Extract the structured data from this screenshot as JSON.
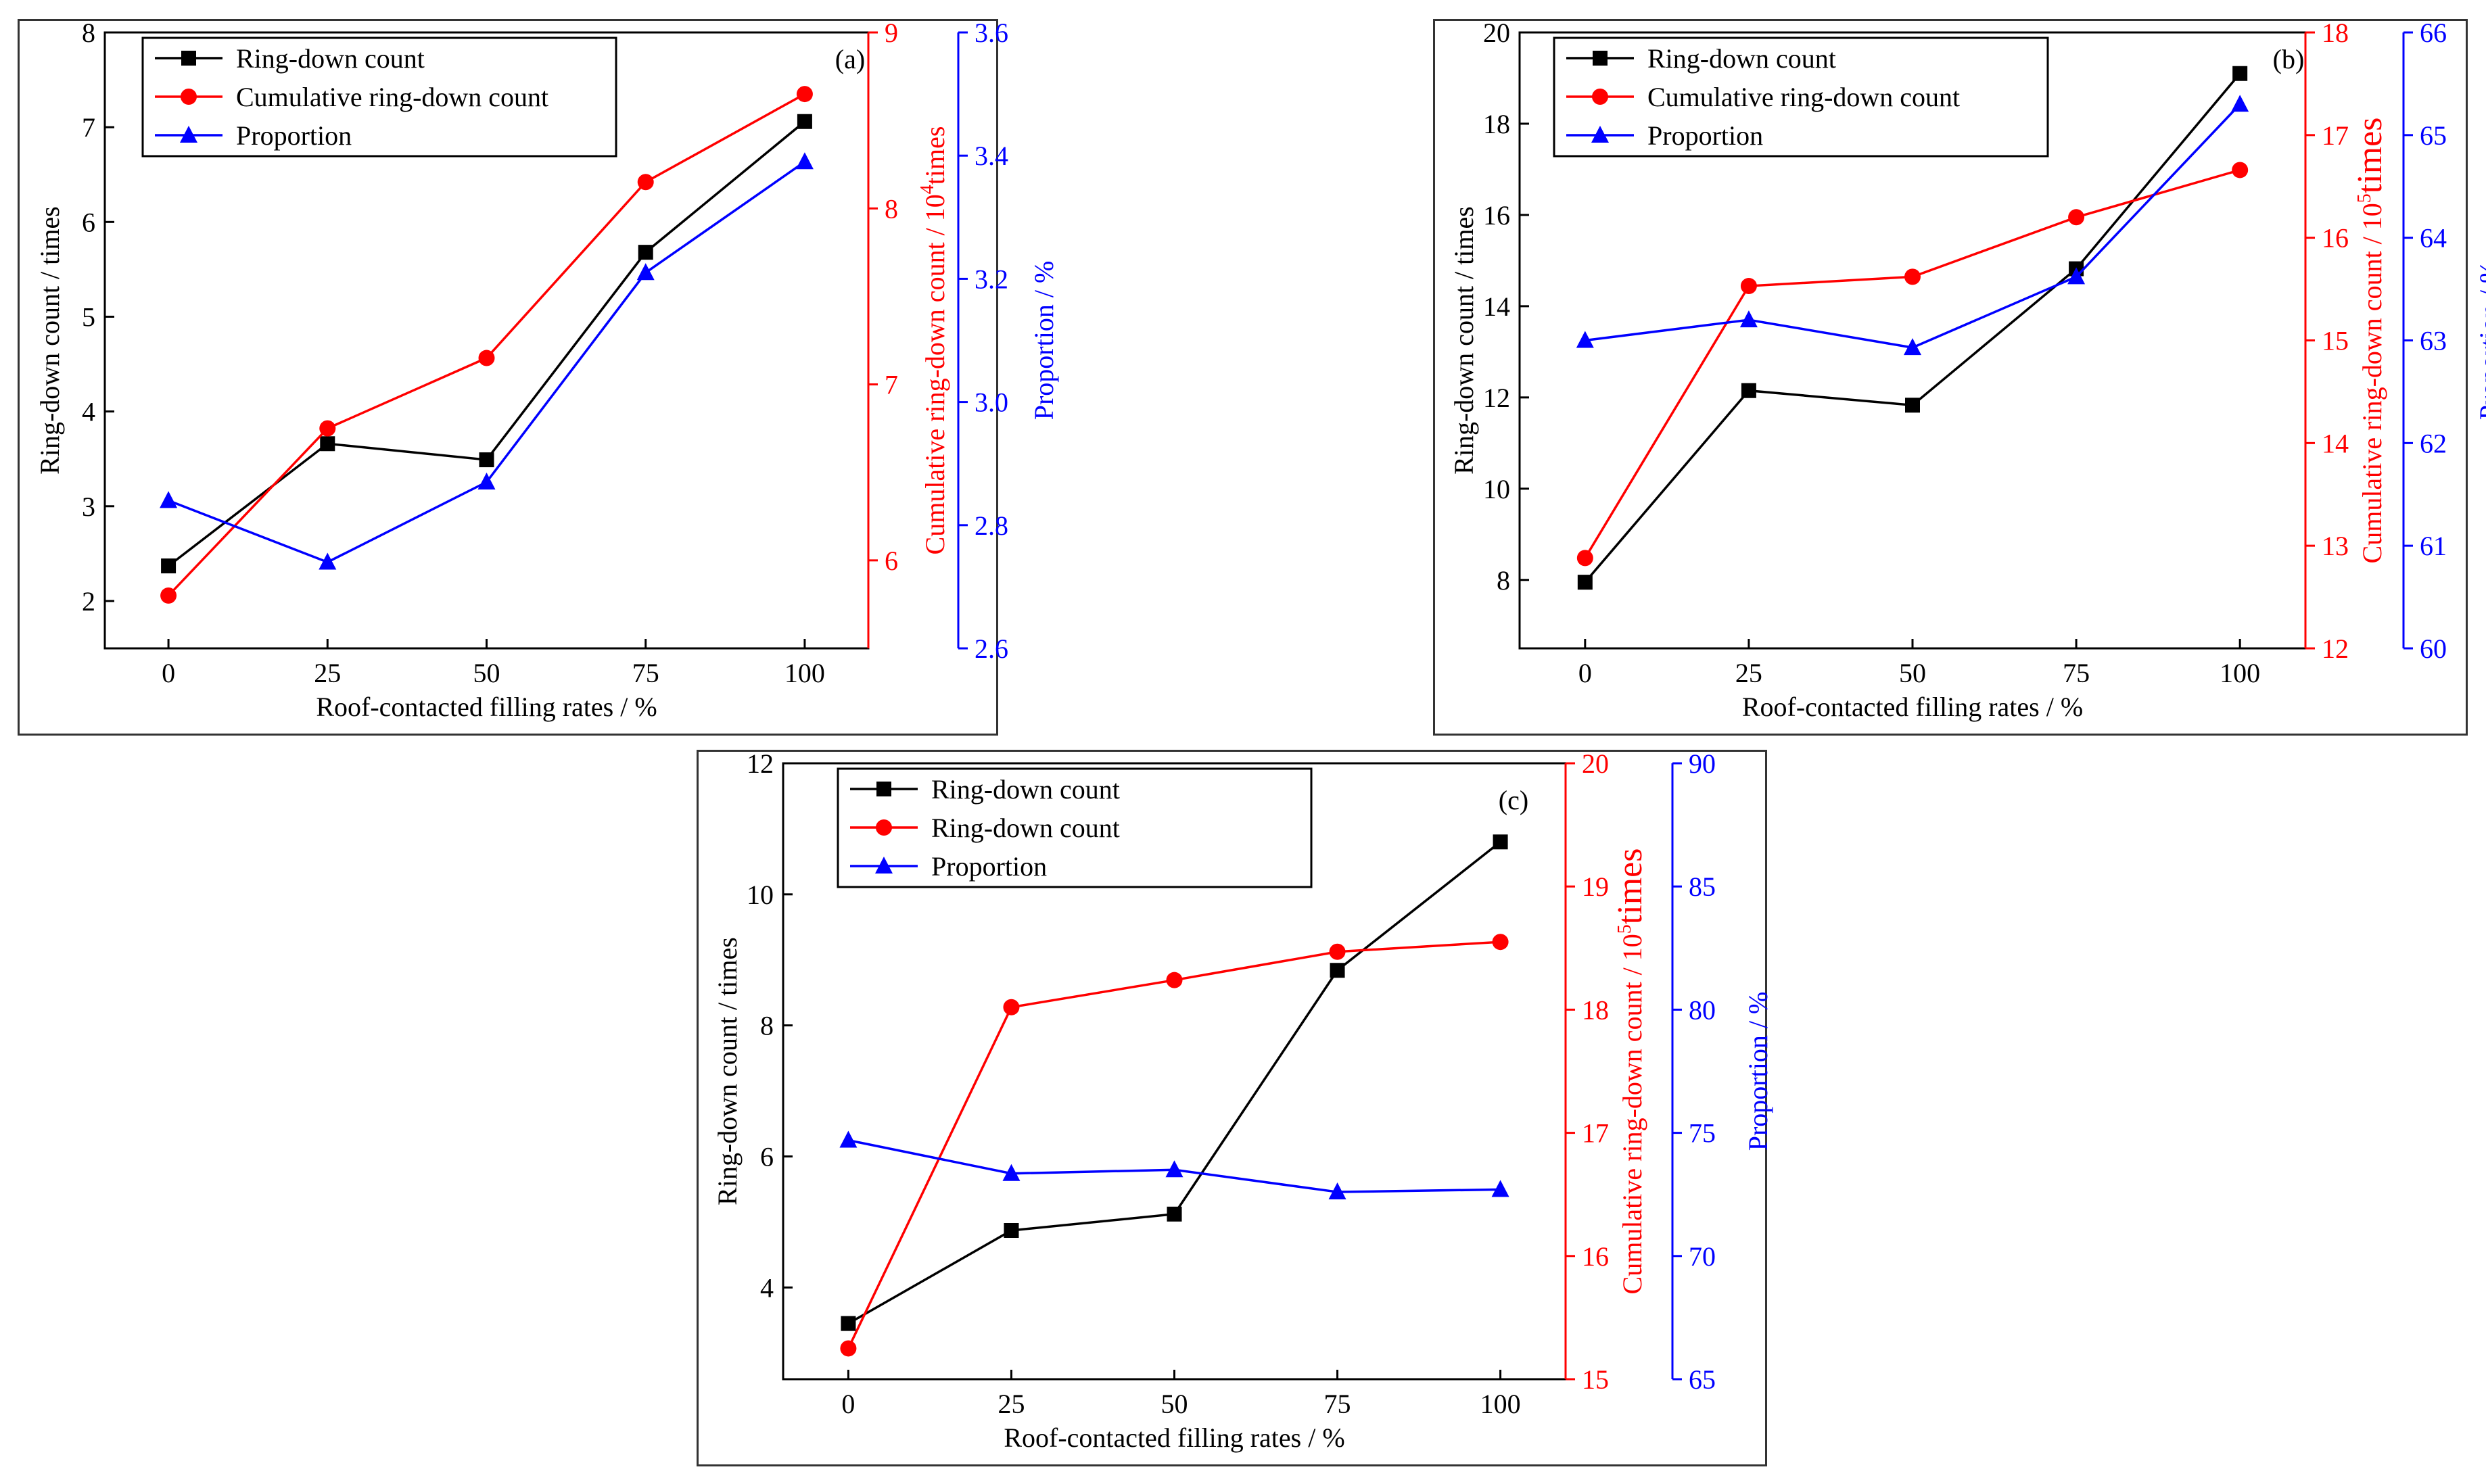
{
  "colors": {
    "black": "#000000",
    "red": "#ff0000",
    "blue": "#0000ff",
    "frame": "#333333"
  },
  "chart_data": [
    {
      "panel_label": "(a)",
      "type": "line",
      "x": [
        0,
        25,
        50,
        75,
        100
      ],
      "x_ticks": [
        "0",
        "25",
        "50",
        "75",
        "100"
      ],
      "xlabel": "Roof-contacted filling rates / %",
      "xlim": [
        -10,
        110
      ],
      "y_left": {
        "label": "Ring-down count / times",
        "lim": [
          1.5,
          8
        ],
        "ticks": [
          "2",
          "3",
          "4",
          "5",
          "6",
          "7",
          "8"
        ]
      },
      "y_red": {
        "label_main": "Cumulative ring-down count  / 10",
        "label_sup": "4",
        "label_tail": "times",
        "lim": [
          5.5,
          9
        ],
        "ticks": [
          "6",
          "7",
          "8",
          "9"
        ]
      },
      "y_blue": {
        "label": "Proportion / %",
        "lim": [
          2.6,
          3.6
        ],
        "ticks": [
          "2.6",
          "2.8",
          "3.0",
          "3.2",
          "3.4",
          "3.6"
        ]
      },
      "legend_position": "top-left",
      "series": [
        {
          "name": "Ring-down count",
          "axis": "left",
          "marker": "square",
          "color": "#000000",
          "values": [
            2.37,
            3.66,
            3.49,
            5.68,
            7.06
          ]
        },
        {
          "name": "Cumulative ring-down count",
          "axis": "red",
          "marker": "circle",
          "color": "#ff0000",
          "values": [
            5.8,
            6.75,
            7.15,
            8.15,
            8.65
          ]
        },
        {
          "name": "Proportion",
          "axis": "blue",
          "marker": "triangle",
          "color": "#0000ff",
          "values": [
            2.84,
            2.74,
            2.87,
            3.21,
            3.39
          ]
        }
      ]
    },
    {
      "panel_label": "(b)",
      "type": "line",
      "x": [
        0,
        25,
        50,
        75,
        100
      ],
      "x_ticks": [
        "0",
        "25",
        "50",
        "75",
        "100"
      ],
      "xlabel": "Roof-contacted filling rates / %",
      "xlim": [
        -10,
        110
      ],
      "y_left": {
        "label": "Ring-down count / times",
        "lim": [
          6.5,
          20
        ],
        "ticks": [
          "8",
          "10",
          "12",
          "14",
          "16",
          "18",
          "20"
        ]
      },
      "y_red": {
        "label_main": "Cumulative ring-down count  / 10",
        "label_sup": "5",
        "label_tail": "times",
        "lim": [
          12,
          18
        ],
        "ticks": [
          "12",
          "13",
          "14",
          "15",
          "16",
          "17",
          "18"
        ]
      },
      "y_blue": {
        "label": "Proportion / %",
        "lim": [
          60,
          66
        ],
        "ticks": [
          "60",
          "61",
          "62",
          "63",
          "64",
          "65",
          "66"
        ]
      },
      "legend_position": "top-left",
      "series": [
        {
          "name": "Ring-down count",
          "axis": "left",
          "marker": "square",
          "color": "#000000",
          "values": [
            7.95,
            12.15,
            11.83,
            14.82,
            19.1
          ]
        },
        {
          "name": "Cumulative ring-down count",
          "axis": "red",
          "marker": "circle",
          "color": "#ff0000",
          "values": [
            12.88,
            15.53,
            15.62,
            16.2,
            16.66
          ]
        },
        {
          "name": "Proportion",
          "axis": "blue",
          "marker": "triangle",
          "color": "#0000ff",
          "values": [
            63.0,
            63.2,
            62.93,
            63.62,
            65.3
          ]
        }
      ]
    },
    {
      "panel_label": "(c)",
      "type": "line",
      "x": [
        0,
        25,
        50,
        75,
        100
      ],
      "x_ticks": [
        "0",
        "25",
        "50",
        "75",
        "100"
      ],
      "xlabel": "Roof-contacted filling rates / %",
      "xlim": [
        -10,
        110
      ],
      "y_left": {
        "label": "Ring-down count / times",
        "lim": [
          2.6,
          12
        ],
        "ticks": [
          "4",
          "6",
          "8",
          "10",
          "12"
        ]
      },
      "y_red": {
        "label_main": "Cumulative ring-down count  / 10",
        "label_sup": "5",
        "label_tail": "times",
        "lim": [
          15,
          20
        ],
        "ticks": [
          "15",
          "16",
          "17",
          "18",
          "19",
          "20"
        ]
      },
      "y_blue": {
        "label": "Proportion / %",
        "lim": [
          65,
          90
        ],
        "ticks": [
          "65",
          "70",
          "75",
          "80",
          "85",
          "90"
        ]
      },
      "legend_position": "top-left",
      "series": [
        {
          "name": "Ring-down count",
          "axis": "left",
          "marker": "square",
          "color": "#000000",
          "values": [
            3.45,
            4.87,
            5.12,
            8.84,
            10.8
          ]
        },
        {
          "name": "Ring-down count",
          "axis": "red",
          "marker": "circle",
          "color": "#ff0000",
          "values": [
            15.25,
            18.02,
            18.24,
            18.47,
            18.55
          ]
        },
        {
          "name": "Proportion",
          "axis": "blue",
          "marker": "triangle",
          "color": "#0000ff",
          "values": [
            74.7,
            73.35,
            73.5,
            72.6,
            72.7
          ]
        }
      ]
    }
  ]
}
